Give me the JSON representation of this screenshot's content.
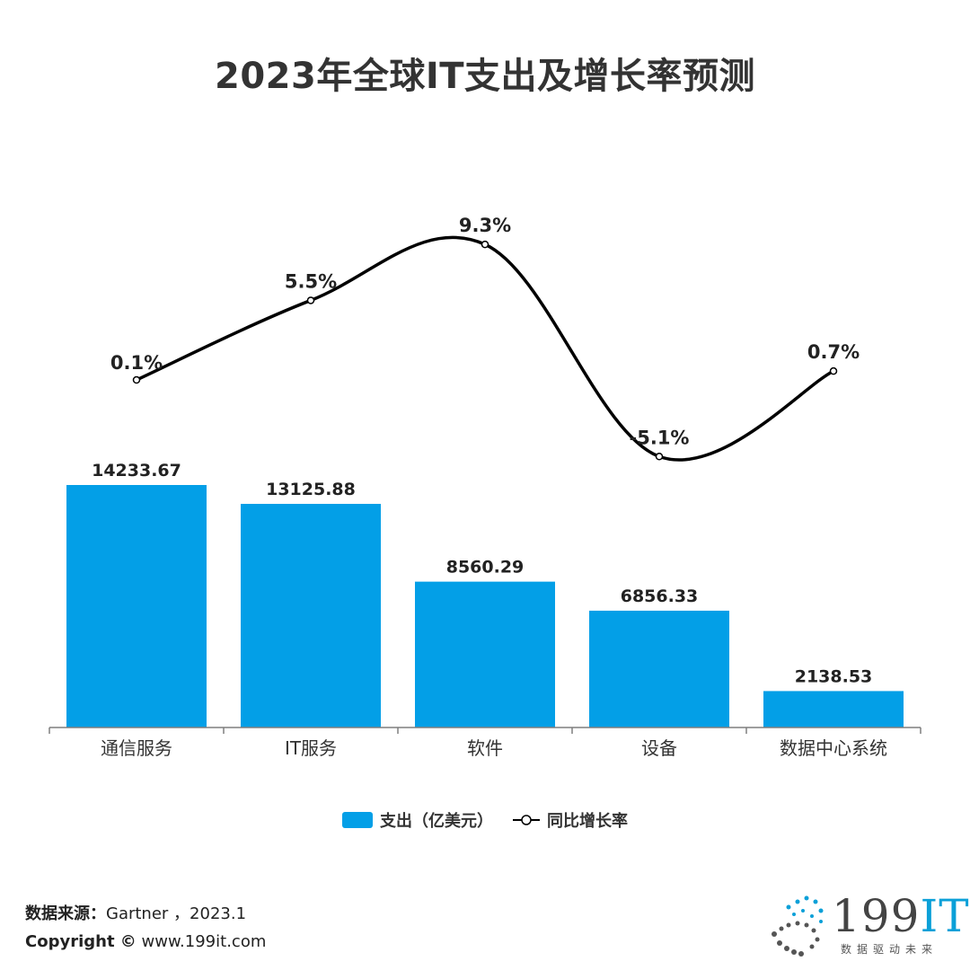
{
  "chart_data": {
    "type": "bar+line",
    "title": "2023年全球IT支出及增长率预测",
    "categories": [
      "通信服务",
      "IT服务",
      "软件",
      "设备",
      "数据中心系统"
    ],
    "series": [
      {
        "name": "支出（亿美元）",
        "type": "bar",
        "values": [
          14233.67,
          13125.88,
          8560.29,
          6856.33,
          2138.53
        ],
        "labels": [
          "14233.67",
          "13125.88",
          "8560.29",
          "6856.33",
          "2138.53"
        ]
      },
      {
        "name": "同比增长率",
        "type": "line",
        "values": [
          0.1,
          5.5,
          9.3,
          -5.1,
          0.7
        ],
        "labels": [
          "0.1%",
          "5.5%",
          "9.3%",
          "-5.1%",
          "0.7%"
        ]
      }
    ],
    "bar_ylim": [
      0,
      15000
    ],
    "line_ylim": [
      -10,
      10
    ],
    "legend_position": "bottom-center"
  },
  "colors": {
    "bar": "#039fe7",
    "line": "#000000",
    "axis": "#7f7f7f"
  },
  "legend": {
    "bar_label": "支出（亿美元）",
    "line_label": "同比增长率"
  },
  "footer": {
    "source_label": "数据来源：",
    "source_value": "Gartner ，2023.1",
    "copyright_label": "Copyright ©",
    "copyright_value": "www.199it.com"
  },
  "logo": {
    "text_num": "199",
    "text_it": "IT",
    "tagline": "数据驱动未来"
  }
}
